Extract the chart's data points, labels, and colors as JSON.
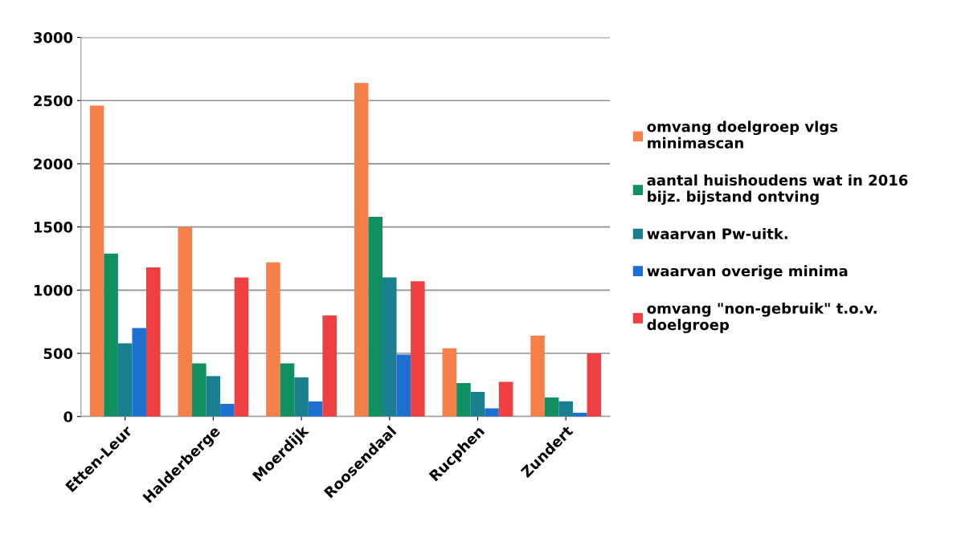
{
  "chart_data": {
    "type": "bar",
    "categories": [
      "Etten-Leur",
      "Halderberge",
      "Moerdijk",
      "Roosendaal",
      "Rucphen",
      "Zundert"
    ],
    "series": [
      {
        "name": "omvang doelgroep vlgs\nminimascan",
        "color": "#f5804a",
        "values": [
          2460,
          1500,
          1220,
          2640,
          540,
          640
        ]
      },
      {
        "name": "aantal huishoudens wat in 2016\nbijz. bijstand ontving",
        "color": "#109060",
        "values": [
          1290,
          420,
          420,
          1580,
          265,
          150
        ]
      },
      {
        "name": "waarvan Pw-uitk.",
        "color": "#1a7f8e",
        "values": [
          580,
          320,
          310,
          1100,
          195,
          120
        ]
      },
      {
        "name": "waarvan overige minima",
        "color": "#1d6fd0",
        "values": [
          700,
          100,
          120,
          490,
          65,
          30
        ]
      },
      {
        "name": "omvang \"non-gebruik\" t.o.v.\ndoelgroep",
        "color": "#ee4040",
        "values": [
          1180,
          1100,
          800,
          1070,
          275,
          500
        ]
      }
    ],
    "ylim": [
      0,
      3000
    ],
    "yticks": [
      0,
      500,
      1000,
      1500,
      2000,
      2500,
      3000
    ],
    "grid": "y",
    "legend": "right"
  }
}
